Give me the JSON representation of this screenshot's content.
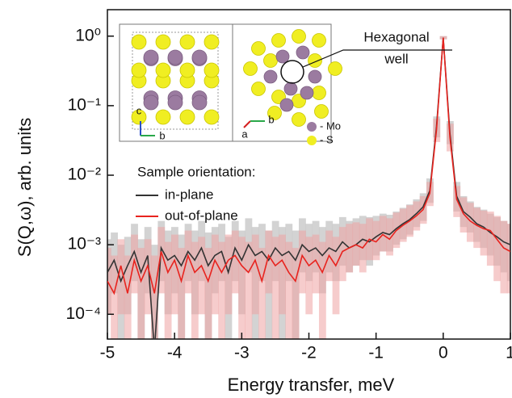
{
  "chart_data": {
    "type": "line",
    "x_label": "Energy transfer, meV",
    "y_label": "S(Q,ω), arb. units",
    "legend_title": "Sample orientation:",
    "annotation": [
      "Hexagonal",
      "well"
    ],
    "inset_labels": [
      "c",
      "b",
      "a",
      "b",
      "- Mo",
      "- S"
    ],
    "log_y": true,
    "xlim": [
      -5,
      1
    ],
    "ylim": [
      4.4e-05,
      2.4
    ],
    "xticks": [
      -5,
      -4,
      -3,
      -2,
      -1,
      0,
      1
    ],
    "yticks": [
      {
        "value": 1,
        "label": "10⁰"
      },
      {
        "value": 0.1,
        "label": "10⁻¹"
      },
      {
        "value": 0.01,
        "label": "10⁻²"
      },
      {
        "value": 0.001,
        "label": "10⁻³"
      },
      {
        "value": 0.0001,
        "label": "10⁻⁴"
      }
    ],
    "x": [
      -5,
      -4.9,
      -4.8,
      -4.7,
      -4.6,
      -4.5,
      -4.4,
      -4.3,
      -4.2,
      -4.1,
      -4,
      -3.9,
      -3.8,
      -3.7,
      -3.6,
      -3.5,
      -3.4,
      -3.3,
      -3.2,
      -3.1,
      -3,
      -2.9,
      -2.8,
      -2.7,
      -2.6,
      -2.5,
      -2.4,
      -2.3,
      -2.2,
      -2.1,
      -2,
      -1.9,
      -1.8,
      -1.7,
      -1.6,
      -1.5,
      -1.4,
      -1.3,
      -1.2,
      -1.1,
      -1,
      -0.9,
      -0.8,
      -0.7,
      -0.6,
      -0.5,
      -0.4,
      -0.3,
      -0.2,
      -0.1,
      0,
      0.1,
      0.2,
      0.3,
      0.4,
      0.5,
      0.6,
      0.7,
      0.8,
      0.9,
      1
    ],
    "series": [
      {
        "name": "in-plane",
        "color": "#333333",
        "band_color": "#c4c4c4",
        "values": [
          0.0004,
          0.0006,
          0.0003,
          0.0005,
          0.0008,
          0.0004,
          0.0007,
          3e-05,
          0.0009,
          0.0006,
          0.0007,
          0.0005,
          0.0008,
          0.0006,
          0.0009,
          0.0005,
          0.0007,
          0.0008,
          0.0004,
          0.0009,
          0.0006,
          0.001,
          0.0007,
          0.0008,
          0.0006,
          0.0009,
          0.0007,
          0.0008,
          0.0006,
          0.001,
          0.0008,
          0.0009,
          0.0007,
          0.0009,
          0.0008,
          0.0011,
          0.0009,
          0.001,
          0.0012,
          0.0011,
          0.0013,
          0.0015,
          0.0014,
          0.0017,
          0.002,
          0.0023,
          0.0028,
          0.0035,
          0.006,
          0.05,
          0.95,
          0.04,
          0.005,
          0.003,
          0.0025,
          0.002,
          0.0018,
          0.0015,
          0.0013,
          0.0011,
          0.001
        ],
        "band_upper": [
          0.0012,
          0.0015,
          0.001,
          0.0013,
          0.002,
          0.0012,
          0.0018,
          0.001,
          0.0022,
          0.0016,
          0.0018,
          0.0014,
          0.002,
          0.0016,
          0.0022,
          0.0015,
          0.0018,
          0.002,
          0.0013,
          0.0022,
          0.0016,
          0.0024,
          0.0018,
          0.002,
          0.0016,
          0.0022,
          0.0018,
          0.002,
          0.0016,
          0.0024,
          0.002,
          0.0022,
          0.0018,
          0.0022,
          0.002,
          0.0025,
          0.0022,
          0.0024,
          0.0026,
          0.0025,
          0.0026,
          0.0028,
          0.0027,
          0.003,
          0.0034,
          0.0038,
          0.0045,
          0.0055,
          0.009,
          0.07,
          1,
          0.06,
          0.008,
          0.005,
          0.0042,
          0.0035,
          0.0032,
          0.0028,
          0.0025,
          0.0022,
          0.002
        ],
        "band_lower": [
          0.0001,
          0.0002,
          1e-05,
          0.0001,
          0.0003,
          1e-05,
          0.0002,
          1e-05,
          0.0003,
          0.0001,
          0.0002,
          1e-05,
          0.0003,
          0.0001,
          0.0003,
          1e-05,
          0.0002,
          0.0003,
          1e-05,
          0.0003,
          0.0001,
          0.0004,
          1e-05,
          0.0003,
          1e-05,
          0.0003,
          1e-05,
          0.0003,
          1e-05,
          0.0004,
          0.0003,
          0.0004,
          0.0002,
          0.0004,
          0.0003,
          0.0005,
          0.0004,
          0.0005,
          0.0006,
          0.0005,
          0.0007,
          0.0008,
          0.0008,
          0.001,
          0.0012,
          0.0014,
          0.0018,
          0.0022,
          0.004,
          0.035,
          0.9,
          0.028,
          0.003,
          0.0018,
          0.0015,
          0.0011,
          0.0009,
          0.0007,
          0.0005,
          0.0004,
          0.0003
        ]
      },
      {
        "name": "out-of-plane",
        "color": "#e8231e",
        "band_color": "#eea3a3",
        "values": [
          0.0003,
          0.0002,
          0.0005,
          0.0002,
          0.0006,
          0.0003,
          0.0005,
          0.0002,
          0.0008,
          0.0004,
          0.0006,
          0.0003,
          0.0007,
          0.0004,
          0.0005,
          0.0003,
          0.0006,
          0.0004,
          0.0006,
          0.0007,
          0.0005,
          0.0004,
          0.0006,
          0.0003,
          0.0007,
          0.0005,
          0.0006,
          0.0004,
          0.0003,
          0.0007,
          0.0005,
          0.0006,
          0.0004,
          0.0007,
          0.0005,
          0.0008,
          0.0009,
          0.001,
          0.0009,
          0.0012,
          0.0011,
          0.0014,
          0.0012,
          0.0016,
          0.0019,
          0.0022,
          0.0026,
          0.0032,
          0.0055,
          0.045,
          0.95,
          0.035,
          0.0045,
          0.0028,
          0.0022,
          0.0019,
          0.0017,
          0.0016,
          0.0012,
          0.0009,
          0.0008
        ],
        "band_upper": [
          0.0009,
          0.0007,
          0.0012,
          0.0007,
          0.0014,
          0.0009,
          0.0012,
          0.0007,
          0.0018,
          0.0011,
          0.0014,
          0.0009,
          0.0016,
          0.0011,
          0.0013,
          0.0009,
          0.0014,
          0.0011,
          0.0014,
          0.0016,
          0.0013,
          0.0011,
          0.0014,
          0.0009,
          0.0016,
          0.0013,
          0.0014,
          0.0011,
          0.0009,
          0.0016,
          0.0013,
          0.0014,
          0.0011,
          0.0016,
          0.0013,
          0.0018,
          0.002,
          0.0021,
          0.002,
          0.0024,
          0.0022,
          0.0026,
          0.0024,
          0.0029,
          0.0033,
          0.0037,
          0.0042,
          0.005,
          0.008,
          0.065,
          1,
          0.055,
          0.007,
          0.0048,
          0.004,
          0.0034,
          0.0031,
          0.003,
          0.0026,
          0.0022,
          0.002
        ],
        "band_lower": [
          0.0001,
          1e-05,
          0.0001,
          1e-05,
          0.0002,
          1e-05,
          0.0001,
          1e-05,
          0.0002,
          1e-05,
          0.0001,
          1e-05,
          0.0002,
          1e-05,
          0.0001,
          1e-05,
          0.0001,
          1e-05,
          0.0001,
          0.0002,
          1e-05,
          1e-05,
          0.0001,
          1e-05,
          0.0002,
          1e-05,
          0.0001,
          1e-05,
          1e-05,
          0.0002,
          0.0001,
          0.0002,
          1e-05,
          0.0003,
          0.0001,
          0.0003,
          0.0004,
          0.0005,
          0.0004,
          0.0006,
          0.0006,
          0.0008,
          0.0007,
          0.0009,
          0.0011,
          0.0013,
          0.0016,
          0.002,
          0.0036,
          0.03,
          0.9,
          0.022,
          0.0025,
          0.0015,
          0.0011,
          0.0009,
          0.0007,
          0.0005,
          0.0003,
          0.0002,
          0.0002
        ]
      }
    ]
  }
}
